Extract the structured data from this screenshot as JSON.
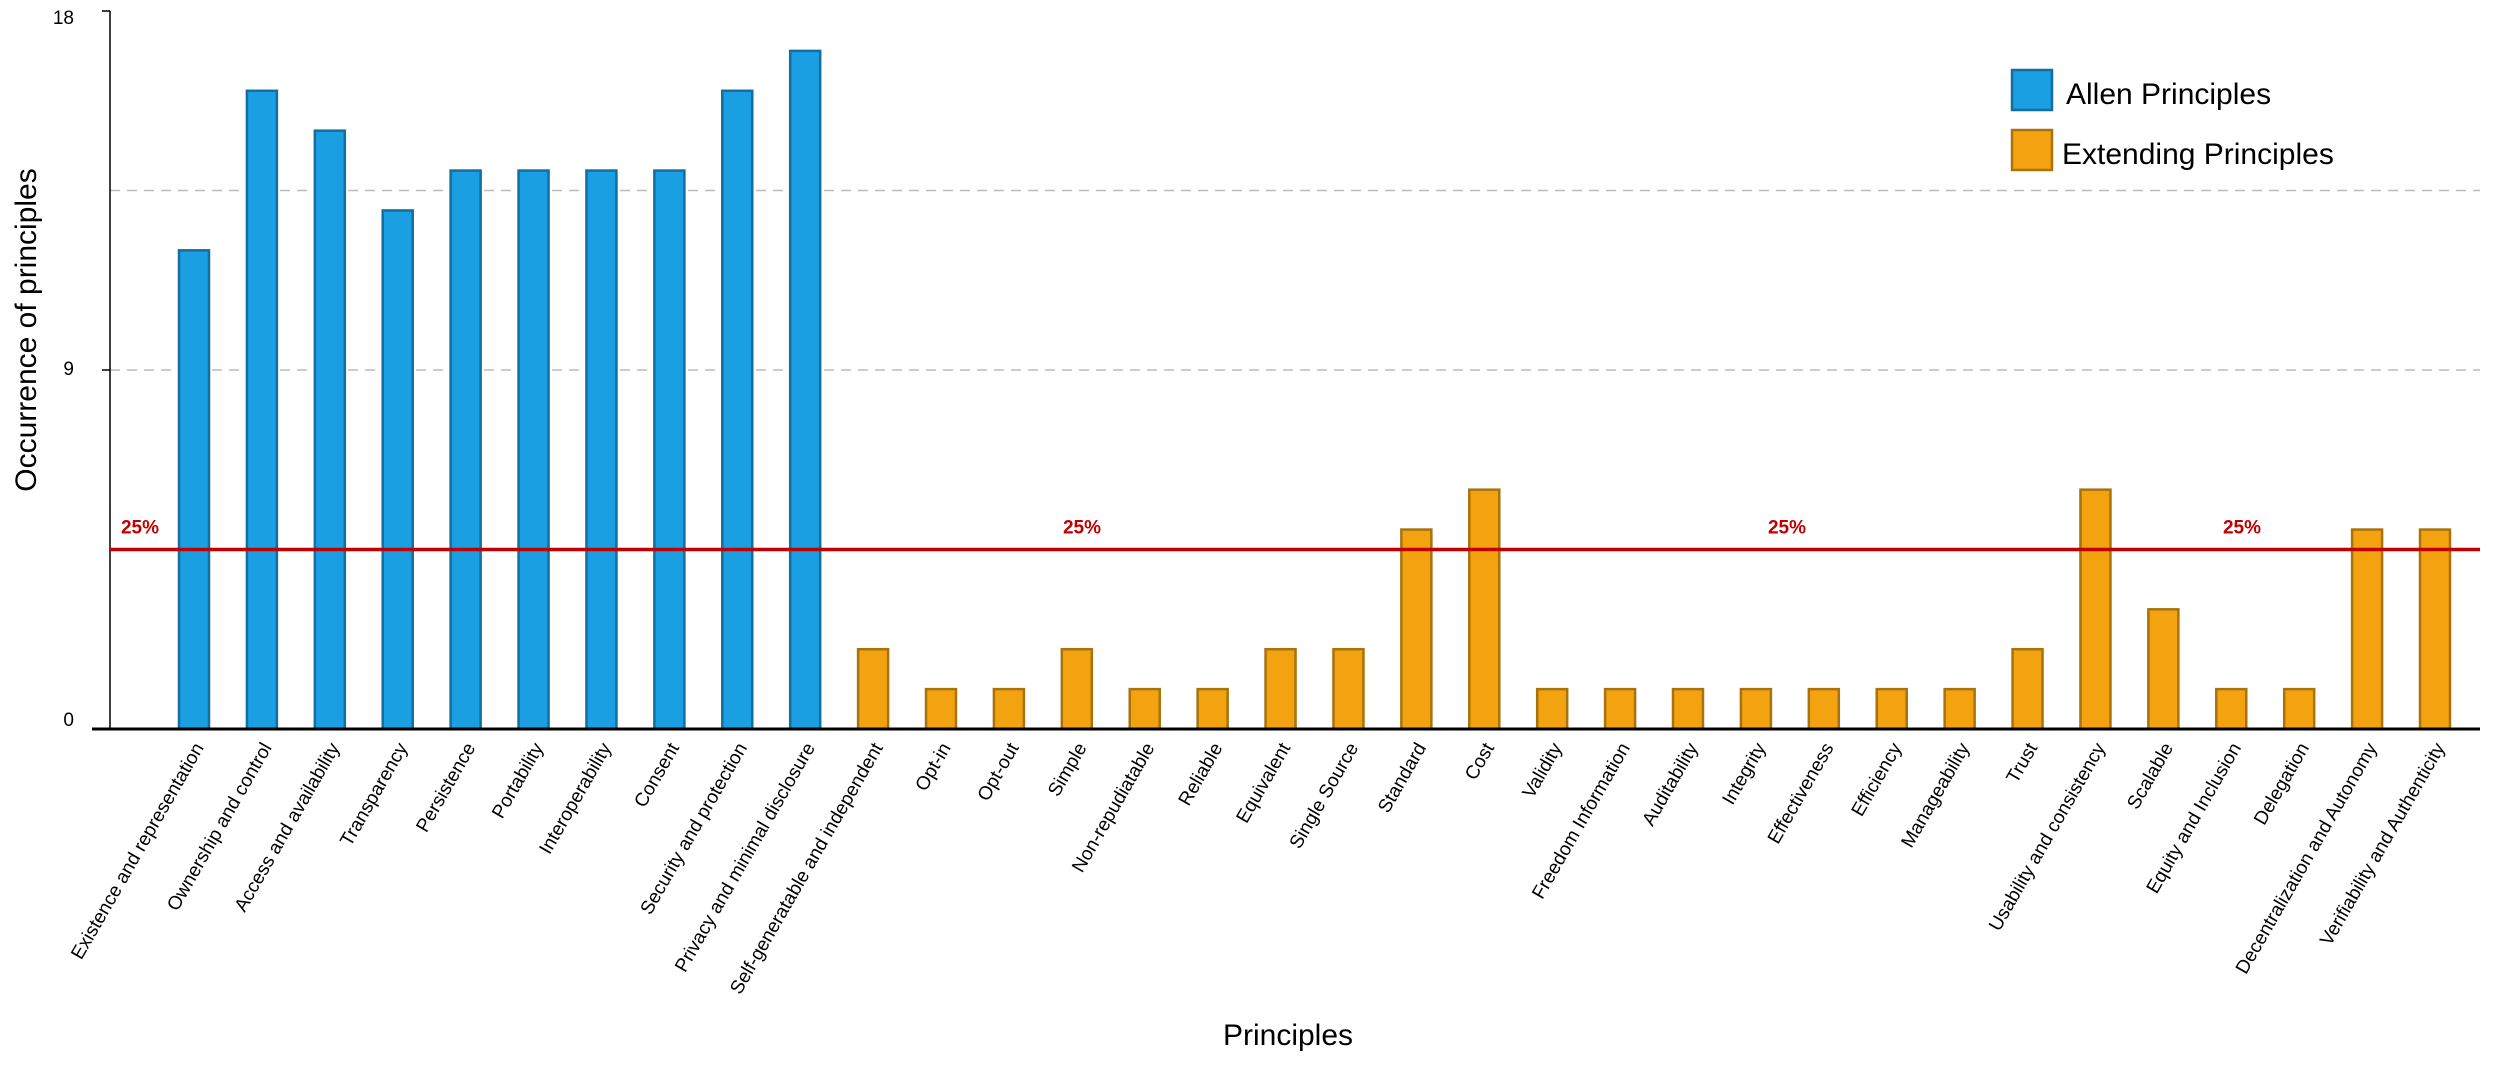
{
  "chart_data": {
    "type": "bar",
    "x_label": "Principles",
    "y_label": "Occurrence of principles",
    "categories": [
      "Existence and representation",
      "Ownership and control",
      "Access and availability",
      "Transparency",
      "Persistence",
      "Portability",
      "Interoperability",
      "Consent",
      "Security and protection",
      "Privacy and minimal disclosure",
      "Self-generatable and independent",
      "Opt-in",
      "Opt-out",
      "Simple",
      "Non-repudiatable",
      "Reliable",
      "Equivalent",
      "Single Source",
      "Standard",
      "Cost",
      "Validity",
      "Freedom Information",
      "Auditability",
      "Integrity",
      "Effectiveness",
      "Efficiency",
      "Manageability",
      "Trust",
      "Usability and consistency",
      "Scalable",
      "Equity and Inclusion",
      "Delegation",
      "Decentralization and Autonomy",
      "Verifiability and Authenticity"
    ],
    "series": [
      {
        "name": "Allen Principles",
        "color": "#1a9fe3",
        "values": [
          12,
          16,
          15,
          13,
          14,
          14,
          14,
          14,
          16,
          17,
          null,
          null,
          null,
          null,
          null,
          null,
          null,
          null,
          null,
          null,
          null,
          null,
          null,
          null,
          null,
          null,
          null,
          null,
          null,
          null,
          null,
          null,
          null,
          null
        ]
      },
      {
        "name": "Extending Principles",
        "color": "#f2a30f",
        "values": [
          null,
          null,
          null,
          null,
          null,
          null,
          null,
          null,
          null,
          null,
          2,
          1,
          1,
          2,
          1,
          1,
          2,
          2,
          5,
          6,
          1,
          1,
          1,
          1,
          1,
          1,
          1,
          2,
          6,
          3,
          1,
          1,
          5,
          5
        ]
      }
    ],
    "ylim": [
      0,
      18
    ],
    "yticks": [
      0,
      9,
      18
    ],
    "grid_lines": [
      9,
      13.5
    ],
    "reference_line": {
      "value": 4.5,
      "label": "25%",
      "color": "#c00000"
    },
    "legend": "upper right"
  }
}
